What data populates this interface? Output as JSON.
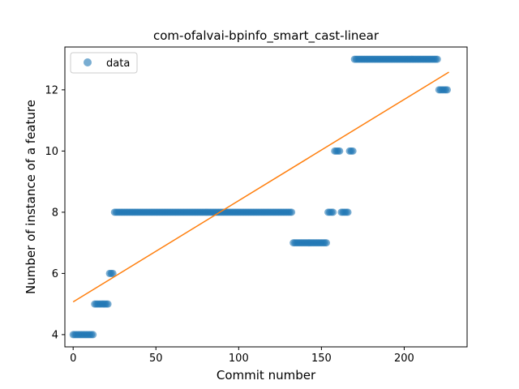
{
  "chart_data": {
    "type": "scatter",
    "title": "com-ofalvai-bpinfo_smart_cast-linear",
    "xlabel": "Commit number",
    "ylabel": "Number of instance of a feature",
    "xlim": [
      -5,
      238
    ],
    "ylim": [
      3.6,
      13.4
    ],
    "xticks": [
      0,
      50,
      100,
      150,
      200
    ],
    "yticks": [
      4,
      6,
      8,
      10,
      12
    ],
    "grid": false,
    "legend": {
      "placement": "top-left",
      "entries": [
        "data"
      ]
    },
    "colors": {
      "points": "#1f77b4",
      "fit": "#ff7f0e"
    },
    "point_segments": [
      {
        "x_start": 0,
        "x_end": 12,
        "y": 4
      },
      {
        "x_start": 13,
        "x_end": 21,
        "y": 5
      },
      {
        "x_start": 22,
        "x_end": 24,
        "y": 6
      },
      {
        "x_start": 25,
        "x_end": 132,
        "y": 8
      },
      {
        "x_start": 133,
        "x_end": 153,
        "y": 7
      },
      {
        "x_start": 154,
        "x_end": 157,
        "y": 8
      },
      {
        "x_start": 158,
        "x_end": 161,
        "y": 10
      },
      {
        "x_start": 162,
        "x_end": 166,
        "y": 8
      },
      {
        "x_start": 167,
        "x_end": 169,
        "y": 10
      },
      {
        "x_start": 170,
        "x_end": 220,
        "y": 13
      },
      {
        "x_start": 221,
        "x_end": 226,
        "y": 12
      }
    ],
    "fit_line": {
      "x": [
        0,
        227
      ],
      "y": [
        5.07,
        12.58
      ]
    }
  }
}
